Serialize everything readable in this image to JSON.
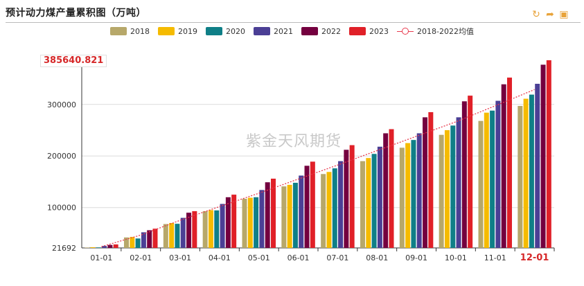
{
  "header": {
    "title": "预计动力煤产量累积图（万吨）",
    "tools": [
      {
        "name": "refresh-icon",
        "glyph": "↻"
      },
      {
        "name": "share-icon",
        "glyph": "➦"
      },
      {
        "name": "download-image-icon",
        "glyph": "▣"
      }
    ]
  },
  "watermark": "紫金天风期货",
  "chart_data": {
    "type": "bar",
    "categories": [
      "01-01",
      "02-01",
      "03-01",
      "04-01",
      "05-01",
      "06-01",
      "07-01",
      "08-01",
      "09-01",
      "10-01",
      "11-01",
      "12-01"
    ],
    "highlight_category": "12-01",
    "ylim": [
      21692,
      385640.821
    ],
    "yticks": [
      100000,
      200000,
      300000
    ],
    "y_min_label": "21692",
    "y_max_label": "385640.821",
    "grid": true,
    "legend": "top-center",
    "series": [
      {
        "name": "2018",
        "color": "#b7a86a",
        "values": [
          22500,
          42000,
          68000,
          93000,
          117000,
          141000,
          165000,
          190000,
          216000,
          241000,
          268000,
          297000
        ]
      },
      {
        "name": "2019",
        "color": "#f5bb00",
        "values": [
          23000,
          43000,
          70000,
          95000,
          119000,
          144000,
          169000,
          196000,
          225000,
          250000,
          284000,
          311000
        ]
      },
      {
        "name": "2020",
        "color": "#0f7f87",
        "values": [
          22700,
          40000,
          68500,
          94500,
          120000,
          148000,
          176000,
          204000,
          231000,
          259000,
          288000,
          319000
        ]
      },
      {
        "name": "2021",
        "color": "#4b3f95",
        "values": [
          25500,
          52000,
          80000,
          107000,
          134000,
          162000,
          190000,
          218000,
          244000,
          275000,
          307000,
          340000
        ]
      },
      {
        "name": "2022",
        "color": "#74003f",
        "values": [
          27500,
          56000,
          90000,
          120000,
          149000,
          181000,
          212000,
          244000,
          275000,
          306000,
          339000,
          377000
        ]
      },
      {
        "name": "2023",
        "color": "#e02028",
        "values": [
          28500,
          59000,
          93000,
          125000,
          156000,
          189000,
          221000,
          252000,
          285000,
          317000,
          352000,
          385640.821
        ]
      },
      {
        "name": "2018-2022均值",
        "color": "#e8394d",
        "type": "line",
        "values": [
          24200,
          46600,
          75300,
          101900,
          127800,
          155200,
          182400,
          210400,
          238200,
          266200,
          297200,
          328800
        ]
      }
    ]
  }
}
